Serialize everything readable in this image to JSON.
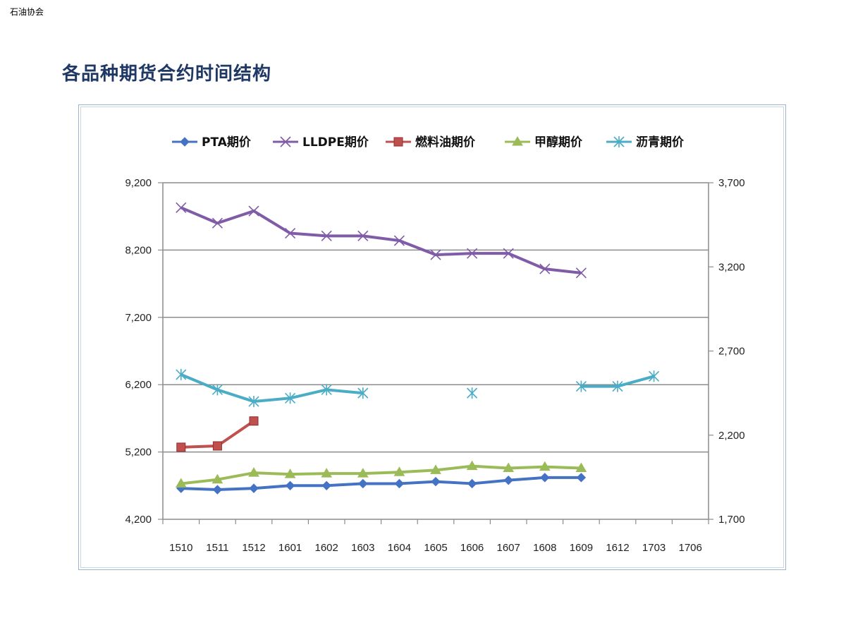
{
  "header": {
    "org": "石油协会",
    "title": "各品种期货合约时间结构"
  },
  "chart_data": {
    "type": "line",
    "title": "",
    "categories": [
      "1510",
      "1511",
      "1512",
      "1601",
      "1602",
      "1603",
      "1604",
      "1605",
      "1606",
      "1607",
      "1608",
      "1609",
      "1612",
      "1703",
      "1706"
    ],
    "y_left": {
      "min": 4200,
      "max": 9200,
      "ticks": [
        9200,
        8200,
        7200,
        6200,
        5200,
        4200
      ],
      "tick_labels": [
        "9,200",
        "8,200",
        "7,200",
        "6,200",
        "5,200",
        "4,200"
      ]
    },
    "y_right": {
      "min": 1700,
      "max": 3700,
      "ticks": [
        3700,
        3200,
        2700,
        2200,
        1700
      ],
      "tick_labels": [
        "3,700",
        "3,200",
        "2,700",
        "2,200",
        "1,700"
      ]
    },
    "grid": true,
    "legend_position": "top",
    "series": [
      {
        "name": "PTA期价",
        "axis": "left",
        "color": "#4472c4",
        "marker": "diamond",
        "values": [
          4660,
          4640,
          4660,
          4700,
          4700,
          4730,
          4730,
          4760,
          4730,
          4780,
          4820,
          4820,
          null,
          null,
          null
        ]
      },
      {
        "name": "LLDPE期价",
        "axis": "left",
        "color": "#7f5ba8",
        "marker": "x",
        "values": [
          8830,
          8600,
          8780,
          8450,
          8410,
          8410,
          8340,
          8130,
          8150,
          8150,
          7920,
          7860,
          null,
          null,
          null
        ]
      },
      {
        "name": "燃料油期价",
        "axis": "left",
        "color": "#c0504d",
        "marker": "square",
        "values": [
          5270,
          5290,
          5660,
          null,
          null,
          null,
          null,
          null,
          null,
          null,
          null,
          null,
          null,
          null,
          null
        ]
      },
      {
        "name": "甲醇期价",
        "axis": "left",
        "color": "#9bbb59",
        "marker": "triangle",
        "values": [
          4730,
          4790,
          4890,
          4870,
          4880,
          4880,
          4900,
          4930,
          4990,
          4960,
          4980,
          4960,
          null,
          null,
          null
        ]
      },
      {
        "name": "沥青期价",
        "axis": "right",
        "color": "#4bacc6",
        "marker": "asterisk",
        "values": [
          2560,
          2470,
          2400,
          2420,
          2470,
          2450,
          null,
          null,
          2450,
          null,
          null,
          2490,
          2490,
          2550,
          null
        ]
      }
    ]
  }
}
